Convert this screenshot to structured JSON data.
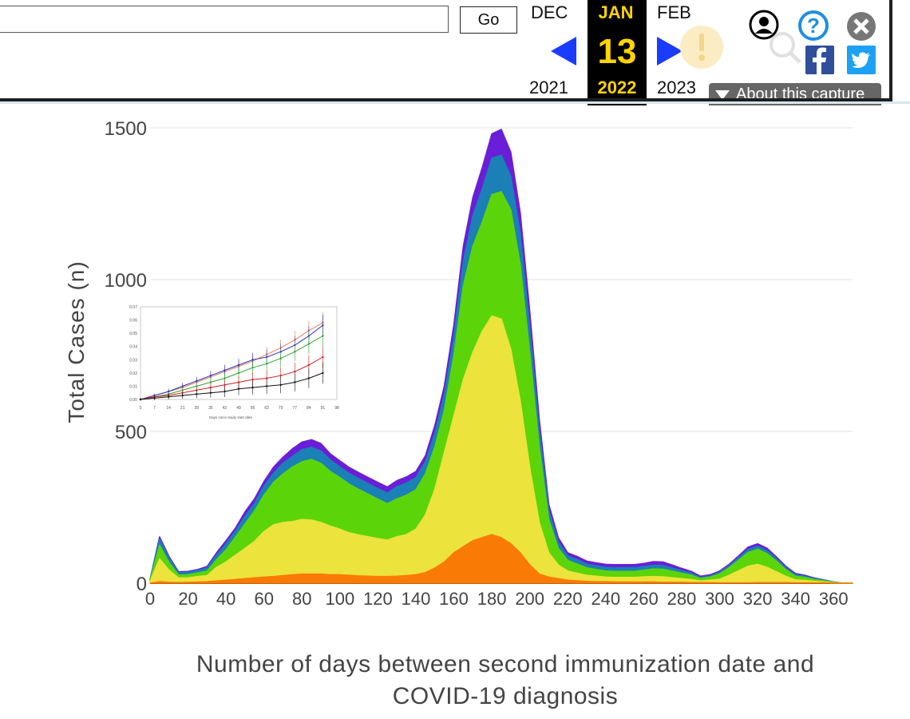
{
  "toolbar": {
    "url_value": "",
    "go_label": "Go",
    "months": {
      "prev": "DEC",
      "current": "JAN",
      "next": "FEB"
    },
    "day": "13",
    "years": {
      "prev": "2021",
      "current": "2022",
      "next": "2023"
    },
    "about_label": "About this capture",
    "icons": [
      "account-icon",
      "help-icon",
      "close-icon",
      "alert-icon",
      "search-icon",
      "facebook-icon",
      "twitter-icon"
    ]
  },
  "chart_data": {
    "type": "area",
    "title": "",
    "xlabel": "Number of days between second immunization date and COVID-19 diagnosis",
    "ylabel": "Total Cases (n)",
    "xlim": [
      0,
      370
    ],
    "ylim": [
      0,
      1500
    ],
    "xticks": [
      "0",
      "20",
      "40",
      "60",
      "80",
      "100",
      "120",
      "140",
      "160",
      "180",
      "200",
      "220",
      "240",
      "260",
      "280",
      "300",
      "320",
      "340",
      "360"
    ],
    "yticks": [
      "0",
      "500",
      "1000",
      "1500"
    ],
    "grid": true,
    "colors": {
      "layer1": "#f97b06",
      "layer2": "#ece33c",
      "layer3": "#5cd40a",
      "layer4": "#1a80b5",
      "layer5": "#6a1ed8"
    },
    "x": [
      0,
      5,
      10,
      15,
      20,
      25,
      30,
      35,
      40,
      45,
      50,
      55,
      60,
      65,
      70,
      75,
      80,
      85,
      90,
      95,
      100,
      105,
      110,
      115,
      120,
      125,
      130,
      135,
      140,
      145,
      150,
      155,
      160,
      165,
      170,
      175,
      180,
      185,
      190,
      195,
      200,
      205,
      210,
      215,
      220,
      225,
      230,
      235,
      240,
      245,
      250,
      255,
      260,
      265,
      270,
      275,
      280,
      285,
      290,
      295,
      300,
      305,
      310,
      315,
      320,
      325,
      330,
      335,
      340,
      345,
      350,
      355,
      360,
      365,
      370
    ],
    "series": [
      {
        "values": [
          0,
          5,
          3,
          2,
          3,
          4,
          5,
          7,
          10,
          12,
          15,
          18,
          20,
          22,
          25,
          28,
          30,
          30,
          30,
          28,
          28,
          26,
          24,
          23,
          22,
          22,
          23,
          25,
          28,
          35,
          50,
          70,
          100,
          120,
          140,
          150,
          160,
          150,
          130,
          100,
          60,
          30,
          20,
          15,
          10,
          8,
          6,
          5,
          5,
          4,
          4,
          4,
          4,
          4,
          3,
          3,
          3,
          2,
          2,
          2,
          1,
          1,
          1,
          1,
          2,
          2,
          2,
          2,
          1,
          1,
          1,
          1,
          0,
          0,
          0
        ]
      },
      {
        "values": [
          5,
          75,
          40,
          15,
          15,
          18,
          20,
          45,
          60,
          80,
          100,
          120,
          150,
          170,
          175,
          175,
          180,
          178,
          170,
          160,
          150,
          140,
          135,
          130,
          125,
          120,
          130,
          135,
          150,
          190,
          260,
          360,
          450,
          550,
          620,
          680,
          720,
          720,
          640,
          500,
          320,
          170,
          80,
          45,
          30,
          25,
          20,
          18,
          15,
          15,
          15,
          15,
          17,
          18,
          18,
          15,
          12,
          10,
          5,
          8,
          12,
          25,
          40,
          55,
          60,
          50,
          35,
          20,
          10,
          8,
          5,
          3,
          1,
          0,
          0
        ]
      },
      {
        "values": [
          5,
          45,
          25,
          10,
          10,
          12,
          15,
          25,
          40,
          60,
          80,
          100,
          120,
          140,
          160,
          180,
          190,
          200,
          195,
          180,
          170,
          160,
          150,
          140,
          130,
          120,
          125,
          130,
          130,
          135,
          140,
          140,
          200,
          310,
          350,
          360,
          400,
          420,
          460,
          450,
          380,
          250,
          110,
          55,
          35,
          30,
          25,
          22,
          20,
          20,
          20,
          20,
          22,
          25,
          25,
          22,
          18,
          15,
          8,
          10,
          18,
          25,
          35,
          45,
          50,
          45,
          35,
          22,
          12,
          10,
          6,
          4,
          2,
          0,
          0
        ]
      },
      {
        "values": [
          2,
          20,
          15,
          8,
          8,
          8,
          10,
          15,
          20,
          20,
          25,
          25,
          30,
          30,
          35,
          35,
          40,
          40,
          40,
          38,
          35,
          35,
          35,
          35,
          35,
          35,
          40,
          40,
          40,
          40,
          45,
          50,
          60,
          80,
          100,
          110,
          120,
          120,
          110,
          100,
          80,
          55,
          30,
          20,
          15,
          15,
          12,
          12,
          12,
          12,
          12,
          12,
          12,
          12,
          12,
          10,
          8,
          6,
          4,
          4,
          5,
          6,
          8,
          10,
          10,
          10,
          8,
          6,
          5,
          4,
          3,
          2,
          1,
          0,
          0
        ]
      },
      {
        "values": [
          1,
          8,
          5,
          3,
          3,
          3,
          5,
          8,
          10,
          10,
          15,
          15,
          15,
          20,
          20,
          25,
          25,
          25,
          25,
          20,
          20,
          20,
          20,
          20,
          20,
          20,
          20,
          20,
          20,
          20,
          25,
          30,
          40,
          50,
          60,
          70,
          80,
          85,
          80,
          70,
          55,
          35,
          20,
          15,
          10,
          10,
          10,
          10,
          10,
          10,
          10,
          10,
          10,
          12,
          12,
          10,
          8,
          6,
          4,
          4,
          4,
          5,
          6,
          8,
          8,
          8,
          6,
          5,
          4,
          3,
          2,
          1,
          0,
          0,
          0
        ]
      }
    ],
    "inset": {
      "type": "line",
      "xlabel": "Days since study start date",
      "xticks": [
        "0",
        "7",
        "14",
        "21",
        "28",
        "35",
        "42",
        "49",
        "56",
        "63",
        "70",
        "77",
        "84",
        "91",
        "98"
      ],
      "yticks": [
        "0.00",
        "0.01",
        "0.02",
        "0.03",
        "0.04",
        "0.05",
        "0.06",
        "0.07"
      ],
      "x": [
        0,
        7,
        14,
        21,
        28,
        35,
        42,
        49,
        56,
        63,
        70,
        77,
        84,
        91
      ],
      "series": [
        {
          "color": "#e08050",
          "values": [
            0,
            0.003,
            0.006,
            0.009,
            0.013,
            0.017,
            0.021,
            0.025,
            0.029,
            0.034,
            0.039,
            0.045,
            0.052,
            0.058
          ]
        },
        {
          "color": "#3030c0",
          "values": [
            0,
            0.003,
            0.006,
            0.01,
            0.014,
            0.018,
            0.022,
            0.026,
            0.03,
            0.032,
            0.036,
            0.041,
            0.048,
            0.056
          ]
        },
        {
          "color": "#30a030",
          "values": [
            0,
            0.002,
            0.004,
            0.007,
            0.01,
            0.013,
            0.016,
            0.02,
            0.024,
            0.027,
            0.031,
            0.036,
            0.042,
            0.048
          ]
        },
        {
          "color": "#d02020",
          "values": [
            0,
            0.002,
            0.003,
            0.005,
            0.007,
            0.009,
            0.011,
            0.013,
            0.015,
            0.016,
            0.018,
            0.021,
            0.026,
            0.032
          ]
        },
        {
          "color": "#111111",
          "values": [
            0,
            0.001,
            0.002,
            0.003,
            0.004,
            0.005,
            0.006,
            0.008,
            0.009,
            0.01,
            0.011,
            0.013,
            0.016,
            0.02
          ]
        }
      ]
    }
  }
}
